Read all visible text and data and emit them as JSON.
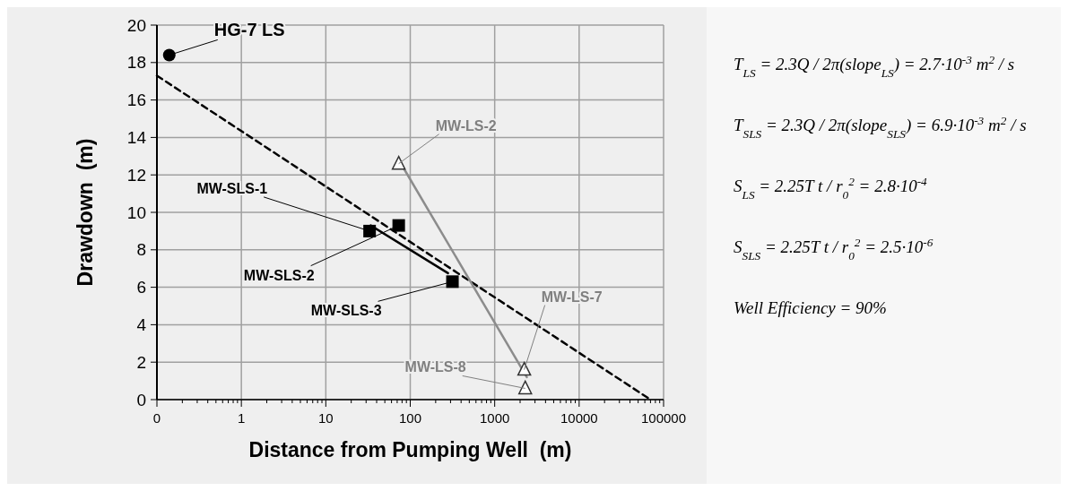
{
  "chart_data": {
    "type": "scatter",
    "xlabel": "Distance from Pumping Well  (m)",
    "ylabel": "Drawdown  (m)",
    "log": "x",
    "grid": true,
    "xlim": [
      0.1,
      100000
    ],
    "xticks": [
      {
        "value": 0.1,
        "label": "0"
      },
      1,
      10,
      100,
      1000,
      10000,
      100000
    ],
    "ylim": [
      0,
      20
    ],
    "yticks": [
      0,
      2,
      4,
      6,
      8,
      10,
      12,
      14,
      16,
      18,
      20
    ],
    "series": [
      {
        "type": "line",
        "color": "#000000",
        "line_style": "dashed",
        "x": [
          0.1,
          70000
        ],
        "values": [
          17.3,
          0
        ]
      },
      {
        "type": "line",
        "color": "#000000",
        "line_style": "solid",
        "x": [
          34,
          280
        ],
        "values": [
          9.3,
          6.75
        ]
      },
      {
        "type": "line",
        "color": "#8c8c8c",
        "line_style": "solid",
        "x": [
          80,
          2400
        ],
        "values": [
          12.5,
          1.2
        ]
      },
      {
        "color": "#000000",
        "marker": "circle",
        "x": [
          0.14
        ],
        "values": [
          18.4
        ]
      },
      {
        "color": "#000000",
        "marker": "square",
        "x": [
          33,
          73,
          316
        ],
        "values": [
          9.0,
          9.3,
          6.3
        ]
      },
      {
        "color": "#333333",
        "marker": "triangle",
        "x": [
          73,
          2240,
          2300
        ],
        "values": [
          12.6,
          1.6,
          0.6
        ]
      }
    ],
    "annotations": [
      {
        "text": "HG-7 LS",
        "x": 0.14,
        "y": 18.4
      },
      {
        "text": "MW-SLS-1",
        "x": 33,
        "y": 9.0
      },
      {
        "text": "MW-SLS-2",
        "x": 73,
        "y": 9.3
      },
      {
        "text": "MW-SLS-3",
        "x": 316,
        "y": 6.3
      },
      {
        "text": "MW-LS-2",
        "x": 73,
        "y": 12.6
      },
      {
        "text": "MW-LS-7",
        "x": 2240,
        "y": 1.6
      },
      {
        "text": "MW-LS-8",
        "x": 2300,
        "y": 0.6
      },
      "T$_{LS}$ = 2.3Q / 2π(slope$_{LS}$) = 2.7·10$^{-3}$ m$^{2}$ / s",
      "T$_{SLS}$ = 2.3Q / 2π(slope$_{SLS}$) = 6.9·10$^{-3}$ m$^{2}$ / s",
      "S$_{LS}$ = 2.25T t / r$_{0}$$^{2}$ = 2.8·10$^{-4}$",
      "S$_{SLS}$ = 2.25T t / r$_{0}$$^{2}$ = 2.5·10$^{-6}$",
      "Well Efficiency = 90%"
    ]
  }
}
